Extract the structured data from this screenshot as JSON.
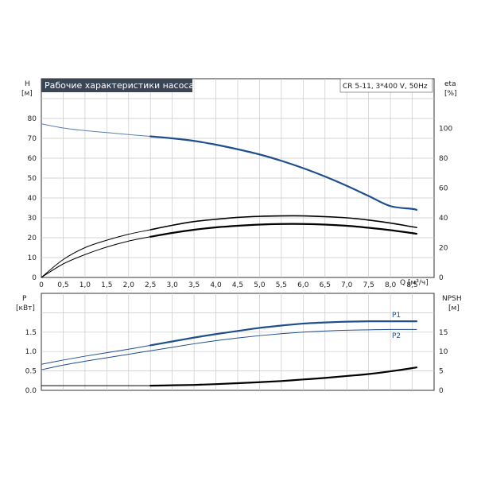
{
  "chart_data": [
    {
      "type": "line",
      "title": "Рабочие характеристики насоса",
      "model": "CR 5-11, 3*400 V, 50Hz",
      "xlabel": "Q [м³/ч]",
      "x_unit": "Q [м³/ч]",
      "y_left": {
        "name": "H",
        "unit": "[м]"
      },
      "y_right": {
        "name": "eta",
        "unit": "[%]"
      },
      "xlim": [
        0,
        9.0
      ],
      "ylim_left": [
        0,
        90
      ],
      "ylim_right": [
        0,
        120
      ],
      "x_ticks": [
        "0",
        "0,5",
        "1,0",
        "1,5",
        "2,0",
        "2,5",
        "3,0",
        "3,5",
        "4,0",
        "4,5",
        "5,0",
        "5,5",
        "6,0",
        "6,5",
        "7,0",
        "7,5",
        "8,0",
        "8,5"
      ],
      "y_left_ticks": [
        "0",
        "10",
        "20",
        "30",
        "40",
        "50",
        "60",
        "70",
        "80"
      ],
      "y_right_ticks": [
        "0",
        "20",
        "40",
        "60",
        "80",
        "100"
      ],
      "grid": true,
      "series": [
        {
          "axis": "left",
          "color": "#5a7fb0",
          "width": 1,
          "x": [
            0,
            0.5,
            1.0,
            1.5,
            2.0,
            2.5
          ],
          "y": [
            77.3,
            75.2,
            73.9,
            72.9,
            71.9,
            71.0
          ]
        },
        {
          "axis": "left",
          "color": "#1f4e8c",
          "width": 2.2,
          "x": [
            2.5,
            3.0,
            3.5,
            4.0,
            4.5,
            5.0,
            5.5,
            6.0,
            6.5,
            7.0,
            7.5,
            8.0,
            8.5,
            8.6
          ],
          "y": [
            71.0,
            70.0,
            68.7,
            66.8,
            64.5,
            61.9,
            58.7,
            55.0,
            50.8,
            46.1,
            41.0,
            35.9,
            34.5,
            34.0
          ]
        },
        {
          "axis": "right",
          "color": "#000000",
          "width": 1,
          "x": [
            0,
            0.5,
            1.0,
            1.5,
            2.0,
            2.5
          ],
          "y": [
            0,
            12,
            20,
            25,
            29,
            32
          ]
        },
        {
          "axis": "right",
          "color": "#000000",
          "width": 1.6,
          "x": [
            2.5,
            3.0,
            3.5,
            4.0,
            4.5,
            5.0,
            5.5,
            6.0,
            6.5,
            7.0,
            7.5,
            8.0,
            8.6
          ],
          "y": [
            32,
            35,
            37.5,
            39,
            40.3,
            41,
            41.3,
            41.3,
            40.8,
            40,
            38.5,
            36.5,
            33.5
          ]
        },
        {
          "axis": "left",
          "color": "#000000",
          "width": 1,
          "x": [
            0,
            0.5,
            1.0,
            1.5,
            2.0,
            2.5
          ],
          "y": [
            0,
            6.8,
            11.5,
            15.3,
            18.3,
            20.5
          ]
        },
        {
          "axis": "left",
          "color": "#000000",
          "width": 2.2,
          "x": [
            2.5,
            3.0,
            3.5,
            4.0,
            4.5,
            5.0,
            5.5,
            6.0,
            6.5,
            7.0,
            7.5,
            8.0,
            8.6
          ],
          "y": [
            20.5,
            22.4,
            24,
            25.2,
            26,
            26.6,
            26.9,
            26.9,
            26.6,
            26,
            25,
            23.8,
            22
          ]
        }
      ]
    },
    {
      "type": "line",
      "xlabel": "Q [м³/ч]",
      "y_left": {
        "name": "P",
        "unit": "[кВт]"
      },
      "y_right": {
        "name": "NPSH",
        "unit": "[м]"
      },
      "xlim": [
        0,
        9.0
      ],
      "ylim_left": [
        0,
        2.5
      ],
      "ylim_right": [
        0,
        25
      ],
      "y_left_ticks": [
        "0.0",
        "0.5",
        "1.0",
        "1.5"
      ],
      "y_right_ticks": [
        "0",
        "5",
        "10",
        "15"
      ],
      "grid": true,
      "labels": {
        "P1": "P1",
        "P2": "P2"
      },
      "series": [
        {
          "name": "P1",
          "axis": "left",
          "color": "#1f4e8c",
          "width": 1,
          "x": [
            0,
            0.5,
            1.0,
            1.5,
            2.0,
            2.5
          ],
          "y": [
            0.67,
            0.78,
            0.88,
            0.97,
            1.06,
            1.16
          ]
        },
        {
          "name": "P1",
          "axis": "left",
          "color": "#1f4e8c",
          "width": 2.2,
          "x": [
            2.5,
            3.0,
            3.5,
            4.0,
            4.5,
            5.0,
            5.5,
            6.0,
            6.5,
            7.0,
            7.5,
            8.0,
            8.6
          ],
          "y": [
            1.16,
            1.26,
            1.36,
            1.45,
            1.53,
            1.61,
            1.67,
            1.72,
            1.75,
            1.77,
            1.78,
            1.78,
            1.78
          ]
        },
        {
          "name": "P2",
          "axis": "left",
          "color": "#1f4e8c",
          "width": 1,
          "x": [
            0,
            0.5,
            1.0,
            1.5,
            2.0,
            2.5,
            3.0,
            3.5,
            4.0,
            4.5,
            5.0,
            5.5,
            6.0,
            6.5,
            7.0,
            7.5,
            8.0,
            8.6
          ],
          "y": [
            0.53,
            0.65,
            0.75,
            0.84,
            0.93,
            1.02,
            1.11,
            1.2,
            1.28,
            1.35,
            1.41,
            1.46,
            1.5,
            1.53,
            1.55,
            1.56,
            1.57,
            1.57
          ]
        },
        {
          "axis": "right",
          "color": "#000000",
          "width": 1,
          "x": [
            0,
            0.5,
            1.0,
            1.5,
            2.0,
            2.5
          ],
          "y": [
            1.2,
            1.2,
            1.2,
            1.2,
            1.2,
            1.2
          ]
        },
        {
          "axis": "right",
          "color": "#000000",
          "width": 2.2,
          "x": [
            2.5,
            3.0,
            3.5,
            4.0,
            4.5,
            5.0,
            5.5,
            6.0,
            6.5,
            7.0,
            7.5,
            8.0,
            8.6
          ],
          "y": [
            1.2,
            1.3,
            1.4,
            1.6,
            1.85,
            2.1,
            2.4,
            2.8,
            3.2,
            3.7,
            4.2,
            4.9,
            5.9
          ]
        }
      ]
    }
  ]
}
